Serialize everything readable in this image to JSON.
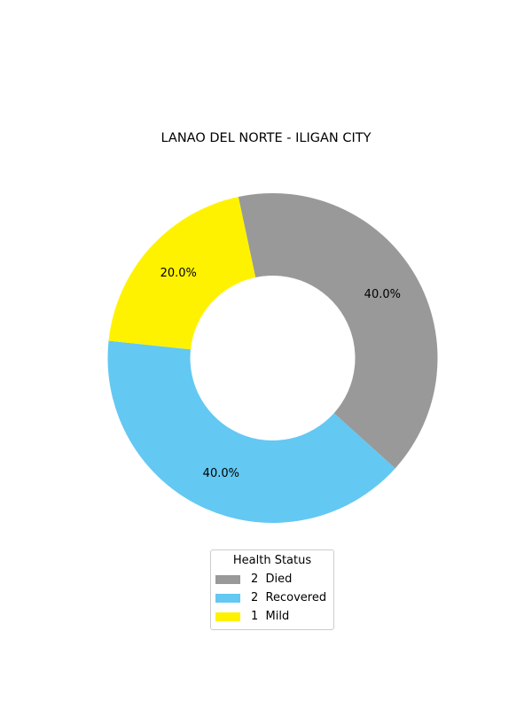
{
  "chart_data": {
    "type": "pie",
    "variant": "donut",
    "title": "LANAO DEL NORTE - ILIGAN CITY",
    "legend_title": "Health Status",
    "legend_placement": "bottom-center",
    "slices": [
      {
        "label": "2  Died",
        "value": 2,
        "percent_label": "40.0%",
        "color": "#999999"
      },
      {
        "label": "2  Recovered",
        "value": 2,
        "percent_label": "40.0%",
        "color": "#63c8f2"
      },
      {
        "label": "1  Mild",
        "value": 1,
        "percent_label": "20.0%",
        "color": "#fff200"
      }
    ]
  }
}
